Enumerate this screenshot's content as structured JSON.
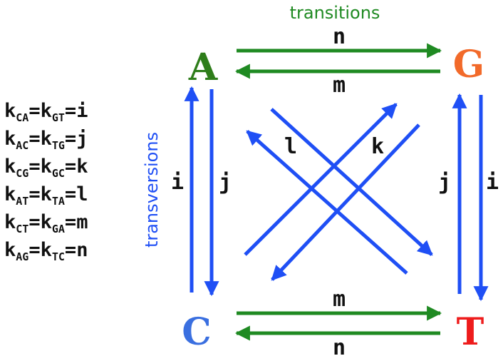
{
  "header": {
    "transitions_label": "transitions"
  },
  "side": {
    "transversions_label": "transversions"
  },
  "nodes": {
    "A": {
      "label": "A",
      "color": "#2e7d1a"
    },
    "G": {
      "label": "G",
      "color": "#f26a2a"
    },
    "C": {
      "label": "C",
      "color": "#3a6fe0"
    },
    "T": {
      "label": "T",
      "color": "#ee1c1c"
    }
  },
  "colors": {
    "transition_arrow": "#1f8a22",
    "transversion_arrow": "#1f4ff5",
    "transitions_text": "#1f8a22",
    "transversions_text": "#1f4ff5"
  },
  "rates": {
    "top_n": "n",
    "top_m": "m",
    "bottom_m": "m",
    "bottom_n": "n",
    "left_i": "i",
    "left_j": "j",
    "right_j": "j",
    "right_i": "i",
    "diag_l": "l",
    "diag_k": "k"
  },
  "equations": [
    {
      "k1": "k",
      "s1": "CA",
      "k2": "k",
      "s2": "GT",
      "val": "i"
    },
    {
      "k1": "k",
      "s1": "AC",
      "k2": "k",
      "s2": "TG",
      "val": "j"
    },
    {
      "k1": "k",
      "s1": "CG",
      "k2": "k",
      "s2": "GC",
      "val": "k"
    },
    {
      "k1": "k",
      "s1": "AT",
      "k2": "k",
      "s2": "TA",
      "val": "l"
    },
    {
      "k1": "k",
      "s1": "CT",
      "k2": "k",
      "s2": "GA",
      "val": "m"
    },
    {
      "k1": "k",
      "s1": "AG",
      "k2": "k",
      "s2": "TC",
      "val": "n"
    }
  ]
}
